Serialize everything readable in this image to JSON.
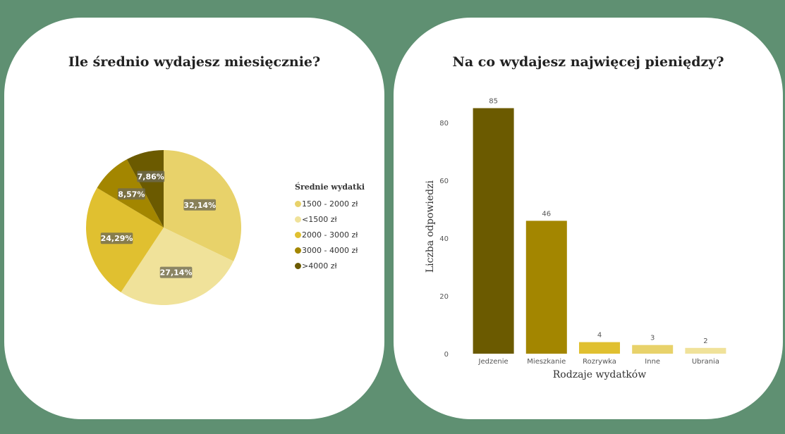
{
  "colors": {
    "background": "#5f9072",
    "card": "#ffffff"
  },
  "chart_data": [
    {
      "type": "pie",
      "title": "Ile średnio wydajesz miesięcznie?",
      "legend_title": "Średnie wydatki",
      "legend_position": "right",
      "slices": [
        {
          "label": "1500 - 2000 zł",
          "value": 32.14,
          "display": "32,14%",
          "color": "#e8d26a"
        },
        {
          "label": "<1500 zł",
          "value": 27.14,
          "display": "27,14%",
          "color": "#f0e29a"
        },
        {
          "label": "2000 - 3000 zł",
          "value": 24.29,
          "display": "24,29%",
          "color": "#e0c030"
        },
        {
          "label": "3000 - 4000 zł",
          "value": 8.57,
          "display": "8,57%",
          "color": "#a38600"
        },
        {
          "label": ">4000 zł",
          "value": 7.86,
          "display": "7,86%",
          "color": "#6b5a00"
        }
      ]
    },
    {
      "type": "bar",
      "title": "Na co wydajesz najwięcej pieniędzy?",
      "xlabel": "Rodzaje wydatków",
      "ylabel": "Liczba odpowiedzi",
      "ylim": [
        0,
        88
      ],
      "yticks": [
        0,
        20,
        40,
        60,
        80
      ],
      "grid": false,
      "categories": [
        "Jedzenie",
        "Mieszkanie",
        "Rozrywka",
        "Inne",
        "Ubrania"
      ],
      "values": [
        85,
        46,
        4,
        3,
        2
      ],
      "colors": [
        "#6b5a00",
        "#a38600",
        "#e0c030",
        "#e8d26a",
        "#f0e29a"
      ]
    }
  ]
}
